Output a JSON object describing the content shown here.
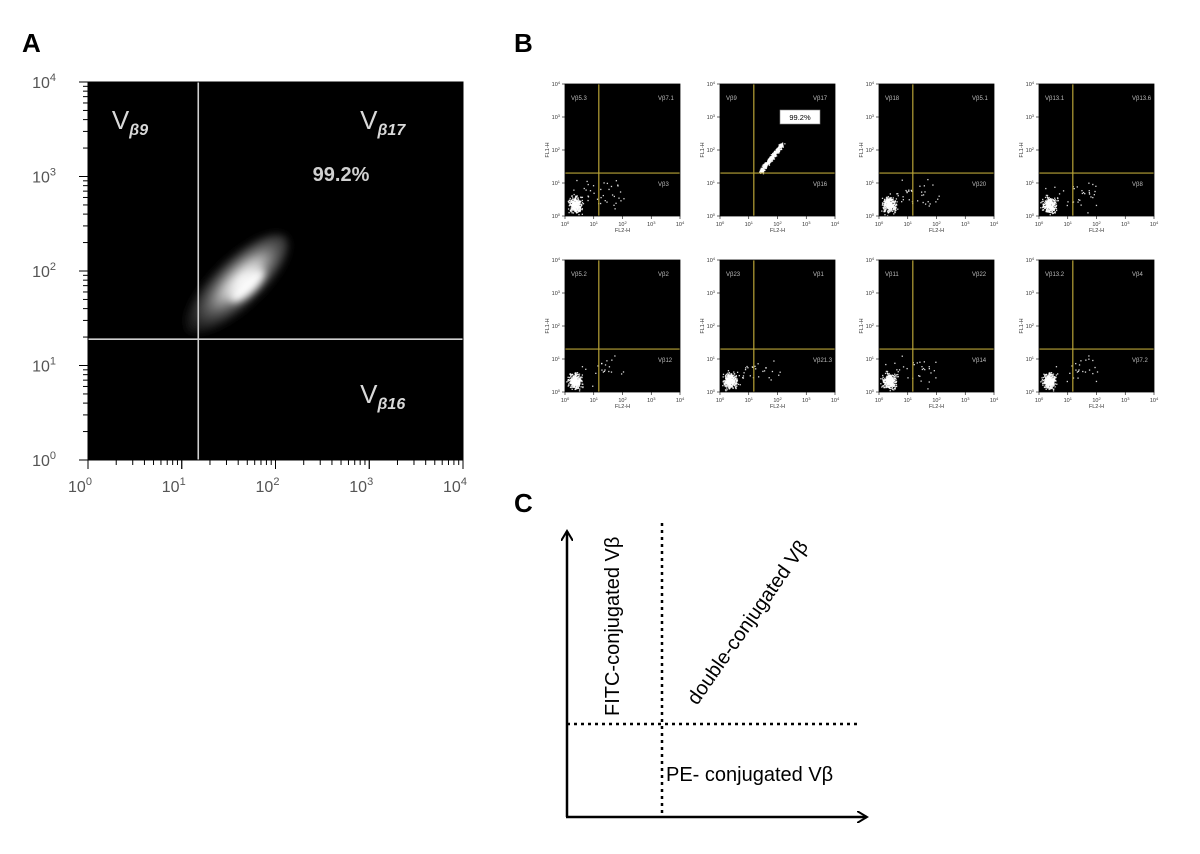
{
  "panels": {
    "a": "A",
    "b": "B",
    "c": "C"
  },
  "chart_data": [
    {
      "type": "scatter",
      "panel": "A",
      "title": "",
      "xlabel": "",
      "ylabel": "",
      "x_scale": "log",
      "y_scale": "log",
      "xlim": [
        1,
        10000
      ],
      "ylim": [
        1,
        10000
      ],
      "x_ticks": [
        "10",
        "10",
        "10",
        "10",
        "10"
      ],
      "x_tick_exps": [
        "0",
        "1",
        "2",
        "3",
        "4"
      ],
      "y_ticks": [
        "10",
        "10",
        "10",
        "10",
        "10"
      ],
      "y_tick_exps": [
        "0",
        "1",
        "2",
        "3",
        "4"
      ],
      "gate": {
        "x": 15,
        "y": 19
      },
      "population": {
        "center_x": 50,
        "center_y": 70,
        "from": [
          15,
          30
        ],
        "to": [
          100,
          180
        ]
      },
      "quadrant_labels": [
        {
          "main": "V",
          "sub": "β9"
        },
        {
          "main": "V",
          "sub": "β17"
        },
        {
          "main": "V",
          "sub": "β16"
        }
      ],
      "annotation": "99.2%",
      "background": "#000000",
      "foreground": "#ffffff"
    },
    {
      "type": "scatter",
      "panel": "B",
      "layout": "2x4 grid of flow cytometry dot plots",
      "x_scale": "log",
      "y_scale": "log",
      "xlim": [
        1,
        10000
      ],
      "ylim": [
        1,
        10000
      ],
      "xlabel": "FL2-H",
      "ylabel": "FL1-H",
      "x_tick_exps": [
        "0",
        "1",
        "2",
        "3",
        "4"
      ],
      "y_tick_exps": [
        "0",
        "1",
        "2",
        "3",
        "4"
      ],
      "gate_color": "#b8a337",
      "background": "#000000",
      "plots": [
        {
          "tl": "Vβ5.3",
          "tr": "Vβ7.1",
          "br": "Vβ3",
          "gate": {
            "x": 15,
            "y": 20
          },
          "annotation": ""
        },
        {
          "tl": "Vβ9",
          "tr": "Vβ17",
          "br": "Vβ16",
          "gate": {
            "x": 15,
            "y": 20
          },
          "annotation": "99.2%"
        },
        {
          "tl": "Vβ18",
          "tr": "Vβ5.1",
          "br": "Vβ20",
          "gate": {
            "x": 15,
            "y": 20
          },
          "annotation": ""
        },
        {
          "tl": "Vβ13.1",
          "tr": "Vβ13.6",
          "br": "Vβ8",
          "gate": {
            "x": 15,
            "y": 20
          },
          "annotation": ""
        },
        {
          "tl": "Vβ5.2",
          "tr": "Vβ2",
          "br": "Vβ12",
          "gate": {
            "x": 15,
            "y": 20
          },
          "annotation": ""
        },
        {
          "tl": "Vβ23",
          "tr": "Vβ1",
          "br": "Vβ21.3",
          "gate": {
            "x": 15,
            "y": 20
          },
          "annotation": ""
        },
        {
          "tl": "Vβ11",
          "tr": "Vβ22",
          "br": "Vβ14",
          "gate": {
            "x": 15,
            "y": 20
          },
          "annotation": ""
        },
        {
          "tl": "Vβ13.2",
          "tr": "Vβ4",
          "br": "Vβ7.2",
          "gate": {
            "x": 15,
            "y": 20
          },
          "annotation": ""
        }
      ]
    }
  ],
  "diagram": {
    "y_axis_label": "FITC-conjugated Vβ",
    "diagonal_label": "double-conjugated Vβ",
    "x_axis_label": "PE- conjugated Vβ"
  }
}
